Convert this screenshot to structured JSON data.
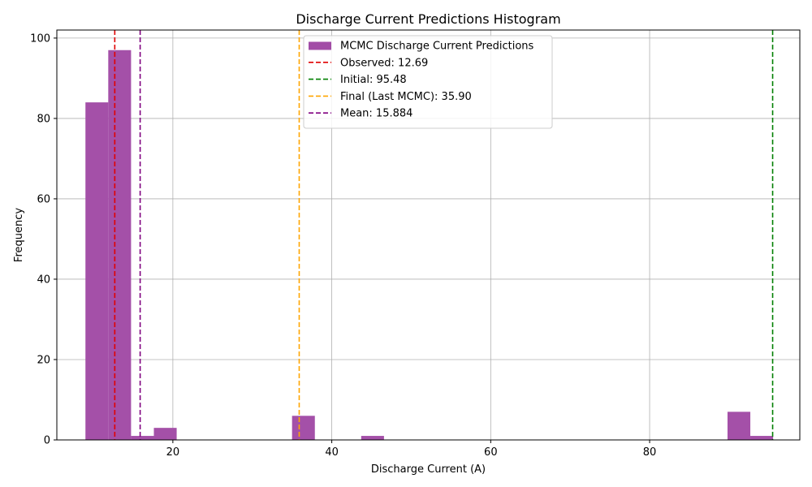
{
  "chart_data": {
    "type": "bar",
    "title": "Discharge Current Predictions Histogram",
    "xlabel": "Discharge Current (A)",
    "ylabel": "Frequency",
    "xlim": [
      5.4,
      98.9
    ],
    "ylim": [
      0,
      102
    ],
    "xticks": [
      20,
      40,
      60,
      80
    ],
    "yticks": [
      0,
      20,
      40,
      60,
      80,
      100
    ],
    "grid": true,
    "legend_position": "top-center",
    "bin_width": 2.87,
    "bars": [
      {
        "x0": 9.0,
        "count": 84
      },
      {
        "x0": 11.87,
        "count": 97
      },
      {
        "x0": 14.74,
        "count": 1
      },
      {
        "x0": 17.61,
        "count": 3
      },
      {
        "x0": 35.0,
        "count": 6
      },
      {
        "x0": 43.7,
        "count": 1
      },
      {
        "x0": 89.8,
        "count": 7
      },
      {
        "x0": 92.67,
        "count": 1
      }
    ],
    "series": [
      {
        "name": "MCMC Discharge Current Predictions",
        "color": "#a24ca6",
        "kind": "histogram"
      }
    ],
    "reference_lines": [
      {
        "label": "Observed: 12.69",
        "x": 12.69,
        "color": "#e00000"
      },
      {
        "label": "Initial: 95.48",
        "x": 95.48,
        "color": "#008000"
      },
      {
        "label": "Final (Last MCMC): 35.90",
        "x": 35.9,
        "color": "#ffa500"
      },
      {
        "label": "Mean: 15.884",
        "x": 15.884,
        "color": "#800080"
      }
    ]
  }
}
